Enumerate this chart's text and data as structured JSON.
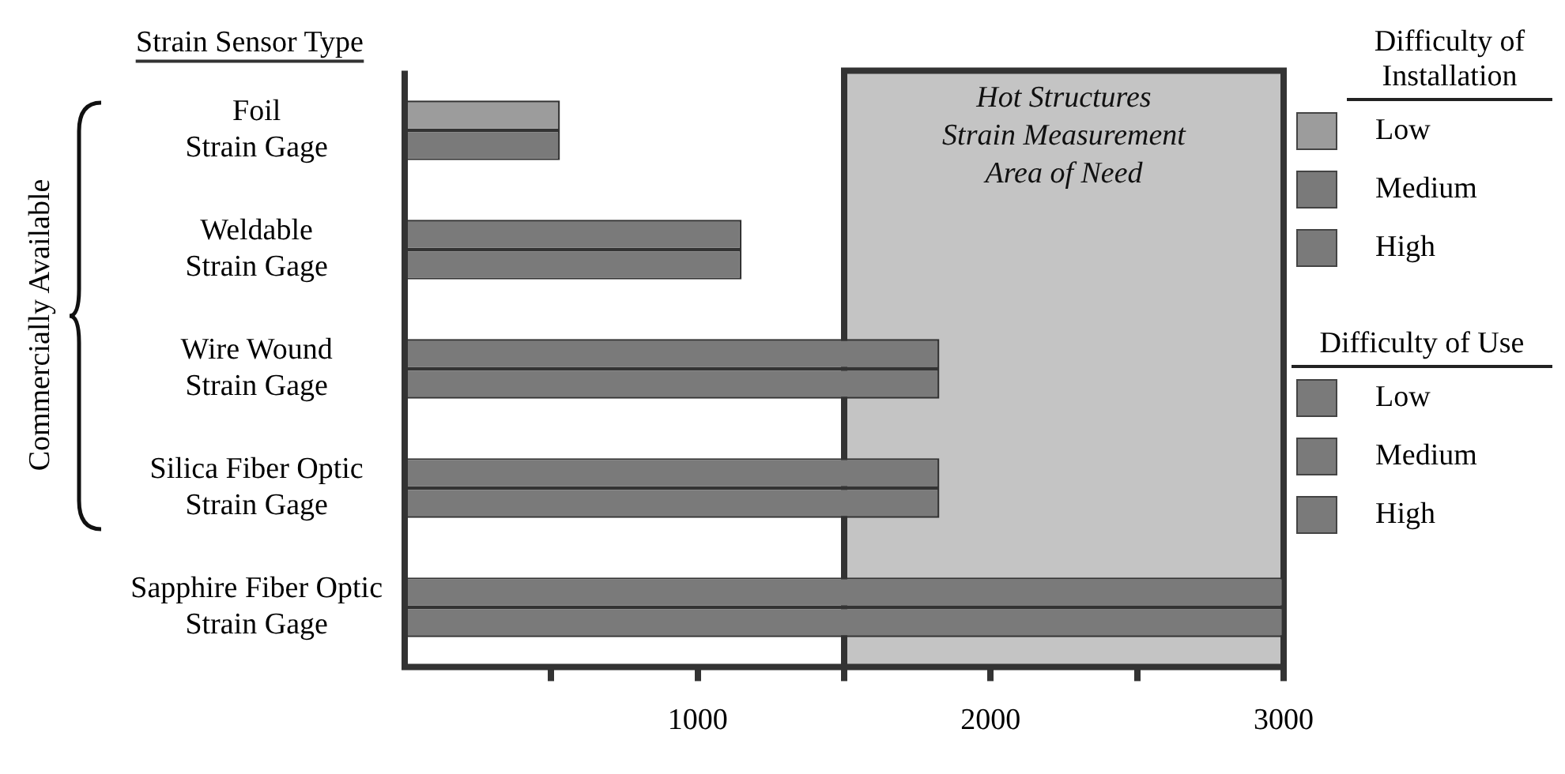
{
  "chart_data": {
    "type": "bar",
    "orientation": "horizontal",
    "ylabel": "Strain Sensor Type",
    "categories": [
      "Foil\nStrain Gage",
      "Weldable\nStrain Gage",
      "Wire Wound\nStrain Gage",
      "Silica Fiber Optic\nStrain Gage",
      "Sapphire Fiber Optic\nStrain Gage"
    ],
    "series": [
      {
        "name": "Difficulty of Installation",
        "color": "#7a7a7a",
        "colors": [
          "#9c9c9c",
          "#7a7a7a",
          "#7a7a7a",
          "#7a7a7a",
          "#7a7a7a"
        ],
        "values": [
          530,
          1150,
          1825,
          1825,
          3000
        ]
      },
      {
        "name": "Difficulty of Use",
        "color": "#7a7a7a",
        "values": [
          530,
          1150,
          1825,
          1825,
          3000
        ]
      }
    ],
    "xlim": [
      0,
      3000
    ],
    "xticks": [
      {
        "value": 500,
        "label": null
      },
      1000,
      {
        "value": 1500,
        "label": null
      },
      2000,
      {
        "value": 2500,
        "label": null
      },
      3000
    ],
    "bands": [
      {
        "axis": "x",
        "from": 1500,
        "to": 3000,
        "label": "Hot Structures\nStrain Measurement\nArea of Need",
        "color": "#c4c4c4"
      }
    ],
    "annotations": [
      "Commercially Available",
      "Low",
      "Medium",
      "High"
    ],
    "grid": false,
    "legend": "right"
  }
}
